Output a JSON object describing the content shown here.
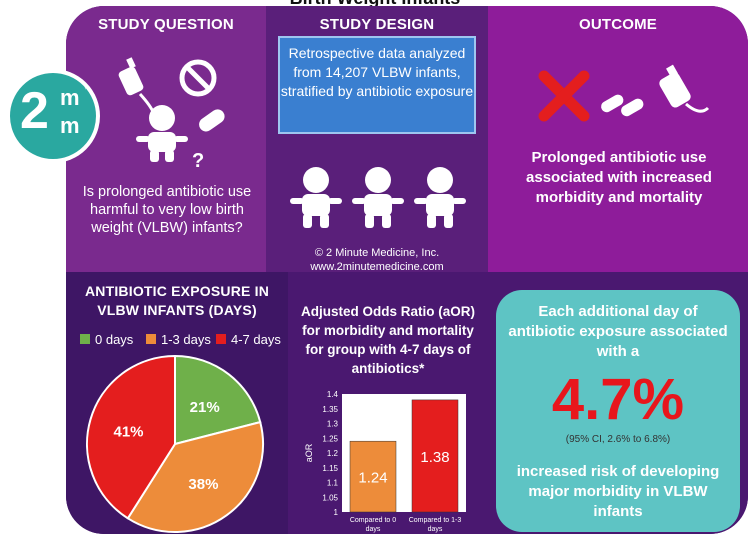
{
  "page": {
    "title": "Birth Weight Infants"
  },
  "sections": {
    "question": {
      "header": "STUDY QUESTION",
      "text": "Is prolonged antibiotic use harmful to very low birth weight (VLBW) infants?"
    },
    "design": {
      "header": "STUDY DESIGN",
      "text": "Retrospective data analyzed from 14,207 VLBW infants, stratified by antibiotic exposure",
      "copyright": "© 2 Minute Medicine, Inc.",
      "website": "www.2minutemedicine.com"
    },
    "outcome": {
      "header": "OUTCOME",
      "text": "Prolonged antibiotic use associated with increased morbidity and mortality"
    }
  },
  "logo": {
    "number": "2",
    "letter1": "m",
    "letter2": "m",
    "tm": "™"
  },
  "pie": {
    "header": "ANTIBIOTIC EXPOSURE IN VLBW INFANTS (DAYS)",
    "legend": [
      {
        "label": "0 days",
        "color": "#6fb04a"
      },
      {
        "label": "1-3 days",
        "color": "#ed8c3a"
      },
      {
        "label": "4-7 days",
        "color": "#e41e1e"
      }
    ]
  },
  "bar": {
    "header": "Adjusted Odds Ratio (aOR) for morbidity and mortality for group with 4-7 days of antibiotics*"
  },
  "highlight": {
    "top": "Each additional day of antibiotic exposure associated with a",
    "value": "4.7%",
    "ci": "(95% CI, 2.6% to 6.8%)",
    "bottom": "increased risk of developing major morbidity in VLBW infants"
  },
  "chart_data": [
    {
      "type": "pie",
      "categories": [
        "0 days",
        "1-3 days",
        "4-7 days"
      ],
      "values": [
        21,
        38,
        41
      ],
      "labels": [
        "21%",
        "38%",
        "41%"
      ],
      "colors": [
        "#6fb04a",
        "#ed8c3a",
        "#e41e1e"
      ]
    },
    {
      "type": "bar",
      "categories": [
        "Compared to 0 days",
        "Compared to 1-3 days"
      ],
      "values": [
        1.24,
        1.38
      ],
      "labels": [
        "1.24",
        "1.38"
      ],
      "colors": [
        "#ed8c3a",
        "#e41e1e"
      ],
      "ylabel": "aOR",
      "ylim": [
        1,
        1.4
      ],
      "yticks": [
        "1",
        "1.05",
        "1.1",
        "1.15",
        "1.2",
        "1.25",
        "1.3",
        "1.35",
        "1.4"
      ]
    }
  ]
}
